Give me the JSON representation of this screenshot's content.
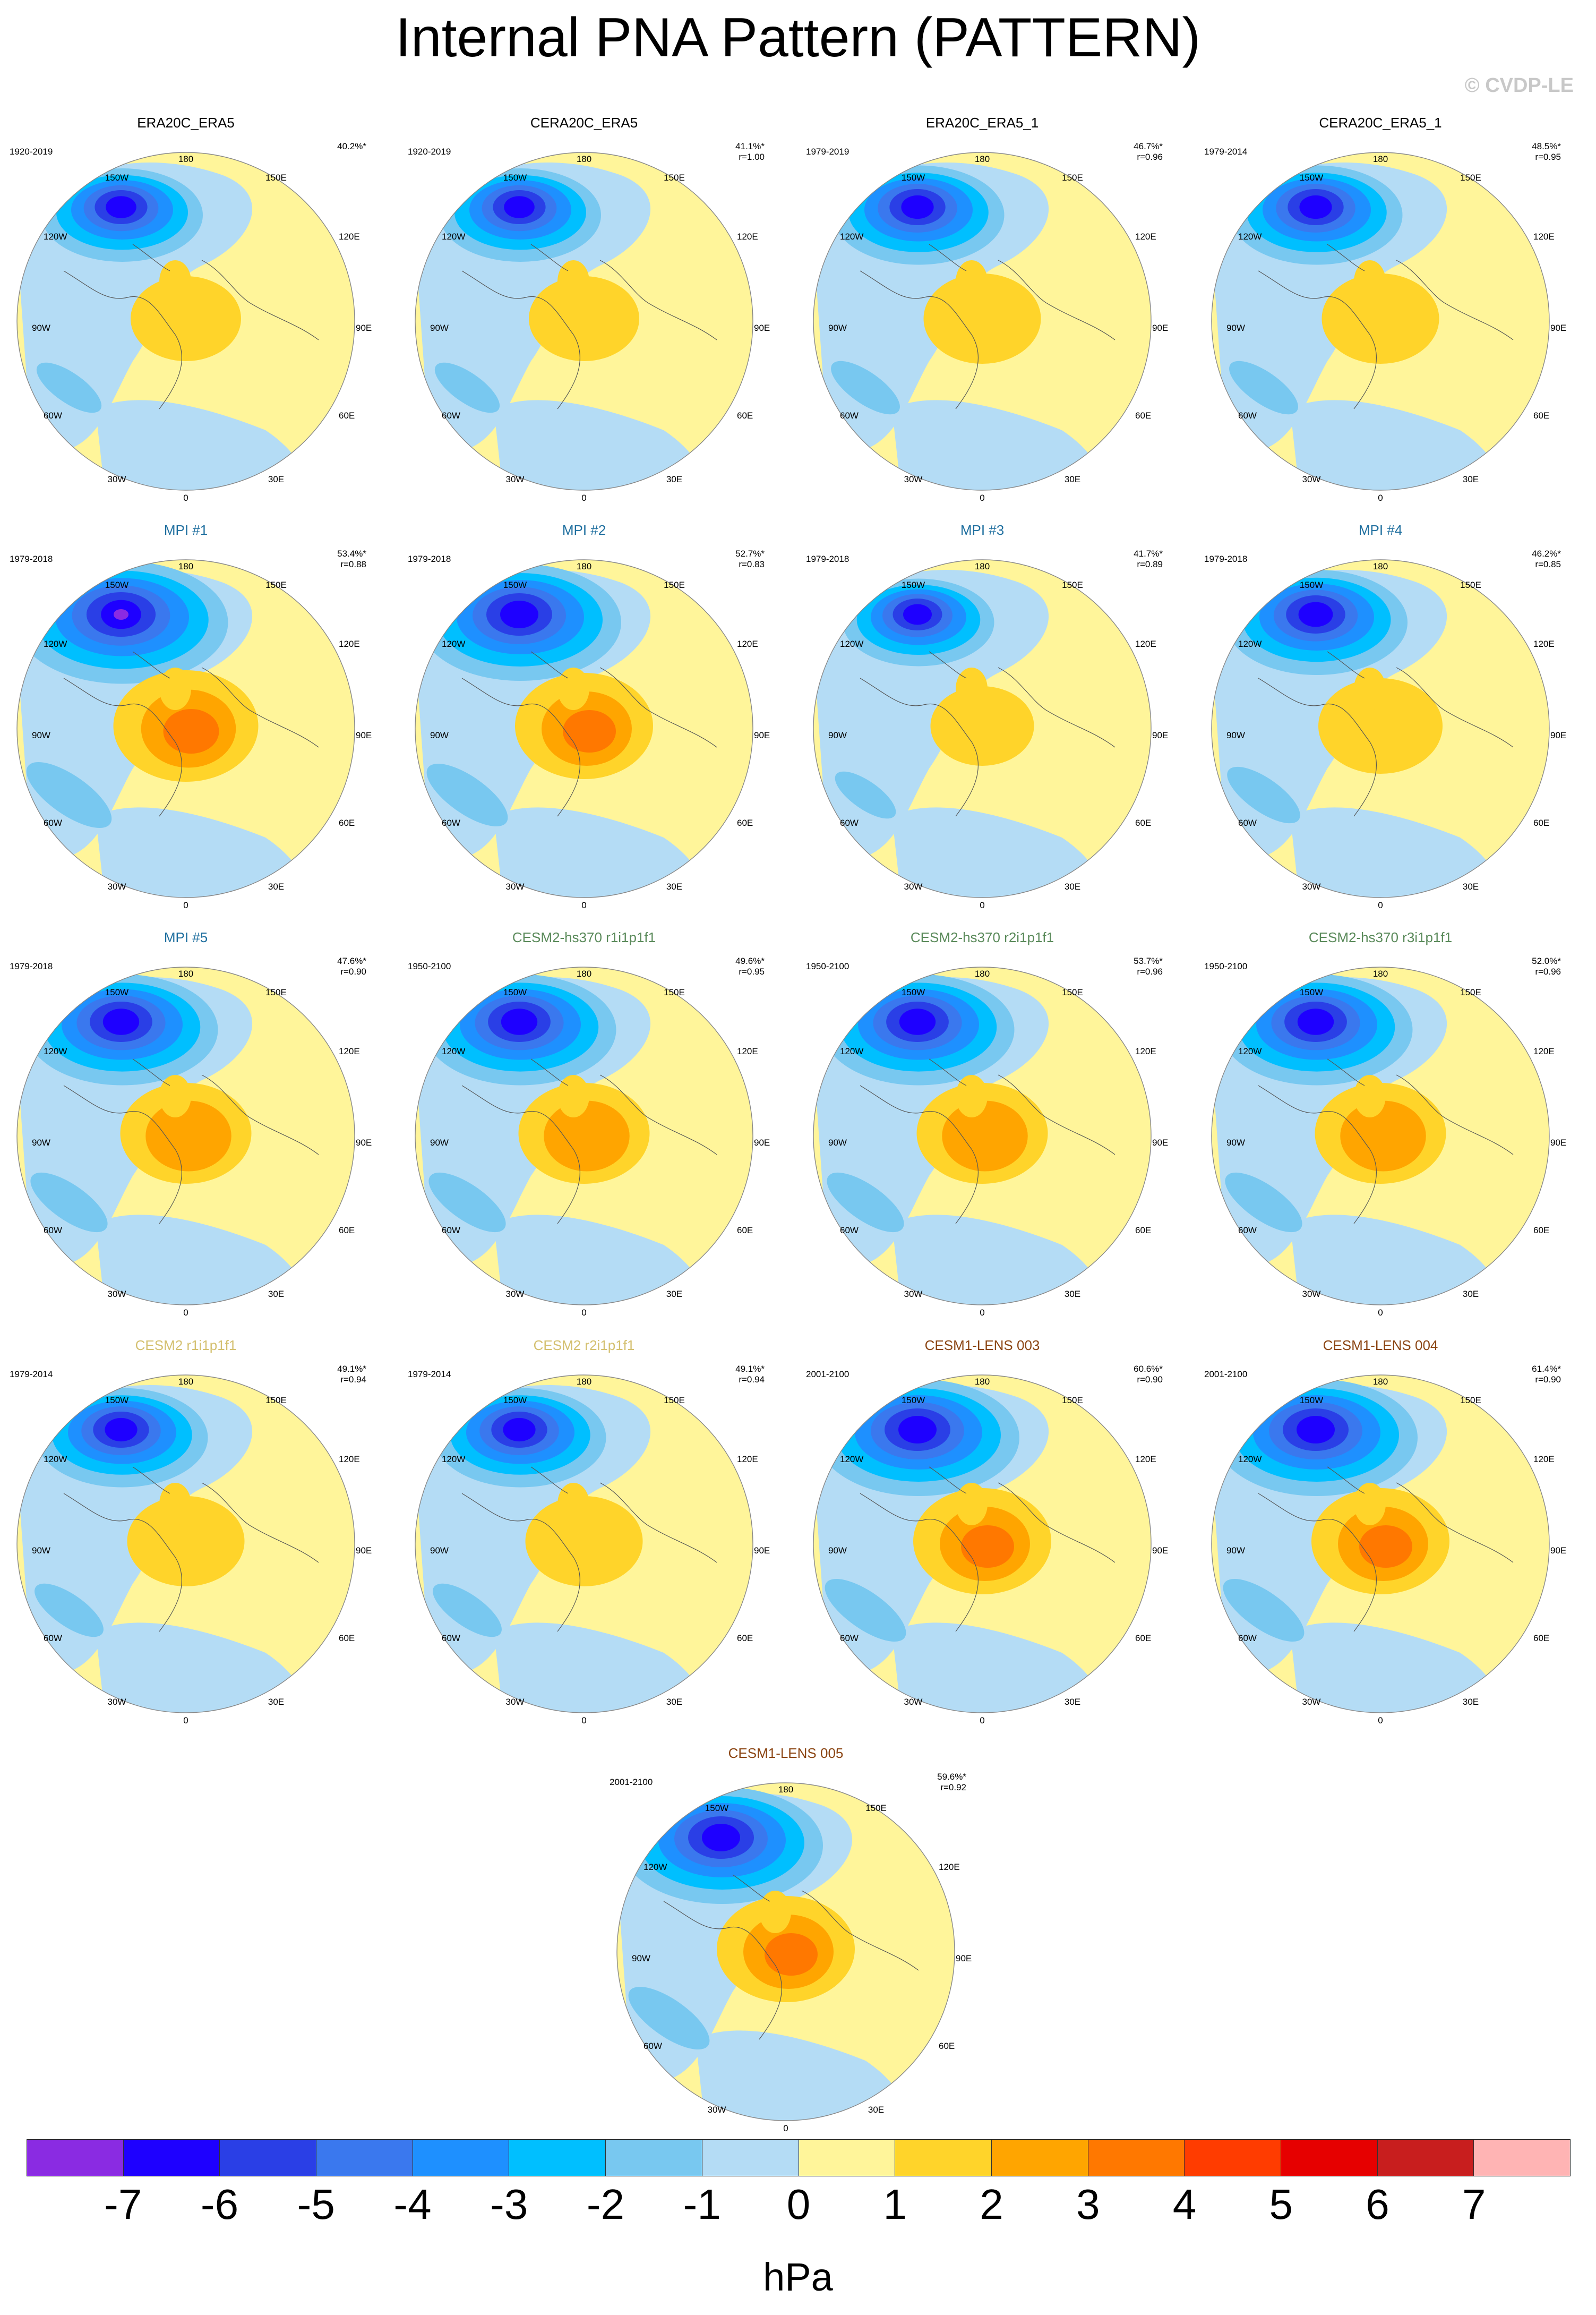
{
  "title": "Internal PNA Pattern (PATTERN)",
  "copyright": "© CVDP-LE",
  "longitude_labels": {
    "top": "180",
    "upper_left": "150W",
    "upper_right": "150E",
    "left_upper": "120W",
    "right_upper": "120E",
    "left": "90W",
    "right": "90E",
    "left_lower": "60W",
    "right_lower": "60E",
    "lower_left": "30W",
    "lower_right": "30E",
    "bottom": "0"
  },
  "panels": [
    {
      "name": "ERA20C_ERA5",
      "years": "1920-2019",
      "pct": "40.2%*",
      "r": "",
      "color": "#000000",
      "strength": 0.8
    },
    {
      "name": "CERA20C_ERA5",
      "years": "1920-2019",
      "pct": "41.1%*",
      "r": "r=1.00",
      "color": "#000000",
      "strength": 0.8
    },
    {
      "name": "ERA20C_ERA5_1",
      "years": "1979-2019",
      "pct": "46.7%*",
      "r": "r=0.96",
      "color": "#000000",
      "strength": 0.85
    },
    {
      "name": "CERA20C_ERA5_1",
      "years": "1979-2014",
      "pct": "48.5%*",
      "r": "r=0.95",
      "color": "#000000",
      "strength": 0.85
    },
    {
      "name": "MPI #1",
      "years": "1979-2018",
      "pct": "53.4%*",
      "r": "r=0.88",
      "color": "#1f6f9f",
      "strength": 1.05
    },
    {
      "name": "MPI #2",
      "years": "1979-2018",
      "pct": "52.7%*",
      "r": "r=0.83",
      "color": "#1f6f9f",
      "strength": 1.0
    },
    {
      "name": "MPI #3",
      "years": "1979-2018",
      "pct": "41.7%*",
      "r": "r=0.89",
      "color": "#1f6f9f",
      "strength": 0.75
    },
    {
      "name": "MPI #4",
      "years": "1979-2018",
      "pct": "46.2%*",
      "r": "r=0.85",
      "color": "#1f6f9f",
      "strength": 0.9
    },
    {
      "name": "MPI #5",
      "years": "1979-2018",
      "pct": "47.6%*",
      "r": "r=0.90",
      "color": "#1f6f9f",
      "strength": 0.95
    },
    {
      "name": "CESM2-hs370 r1i1p1f1",
      "years": "1950-2100",
      "pct": "49.6%*",
      "r": "r=0.95",
      "color": "#5a8a5a",
      "strength": 0.95
    },
    {
      "name": "CESM2-hs370 r2i1p1f1",
      "years": "1950-2100",
      "pct": "53.7%*",
      "r": "r=0.96",
      "color": "#5a8a5a",
      "strength": 0.95
    },
    {
      "name": "CESM2-hs370 r3i1p1f1",
      "years": "1950-2100",
      "pct": "52.0%*",
      "r": "r=0.96",
      "color": "#5a8a5a",
      "strength": 0.95
    },
    {
      "name": "CESM2 r1i1p1f1",
      "years": "1979-2014",
      "pct": "49.1%*",
      "r": "r=0.94",
      "color": "#d4c070",
      "strength": 0.85
    },
    {
      "name": "CESM2 r2i1p1f1",
      "years": "1979-2014",
      "pct": "49.1%*",
      "r": "r=0.94",
      "color": "#d4c070",
      "strength": 0.85
    },
    {
      "name": "CESM1-LENS 003",
      "years": "2001-2100",
      "pct": "60.6%*",
      "r": "r=0.90",
      "color": "#8b4513",
      "strength": 1.0
    },
    {
      "name": "CESM1-LENS 004",
      "years": "2001-2100",
      "pct": "61.4%*",
      "r": "r=0.90",
      "color": "#8b4513",
      "strength": 1.0
    },
    {
      "name": "CESM1-LENS 005",
      "years": "2001-2100",
      "pct": "59.6%*",
      "r": "r=0.92",
      "color": "#8b4513",
      "strength": 1.0
    }
  ],
  "colorbar": {
    "colors": [
      "#8a2be2",
      "#1e00ff",
      "#2a3fe6",
      "#3a78ee",
      "#1e90ff",
      "#00bfff",
      "#78c8f0",
      "#b4dcf5",
      "#fff59a",
      "#ffd42a",
      "#ffa500",
      "#ff7800",
      "#ff3c00",
      "#e60000",
      "#c81e1e",
      "#ffb4b4"
    ],
    "ticks": [
      "-7",
      "-6",
      "-5",
      "-4",
      "-3",
      "-2",
      "-1",
      "0",
      "1",
      "2",
      "3",
      "4",
      "5",
      "6",
      "7"
    ],
    "unit": "hPa"
  }
}
